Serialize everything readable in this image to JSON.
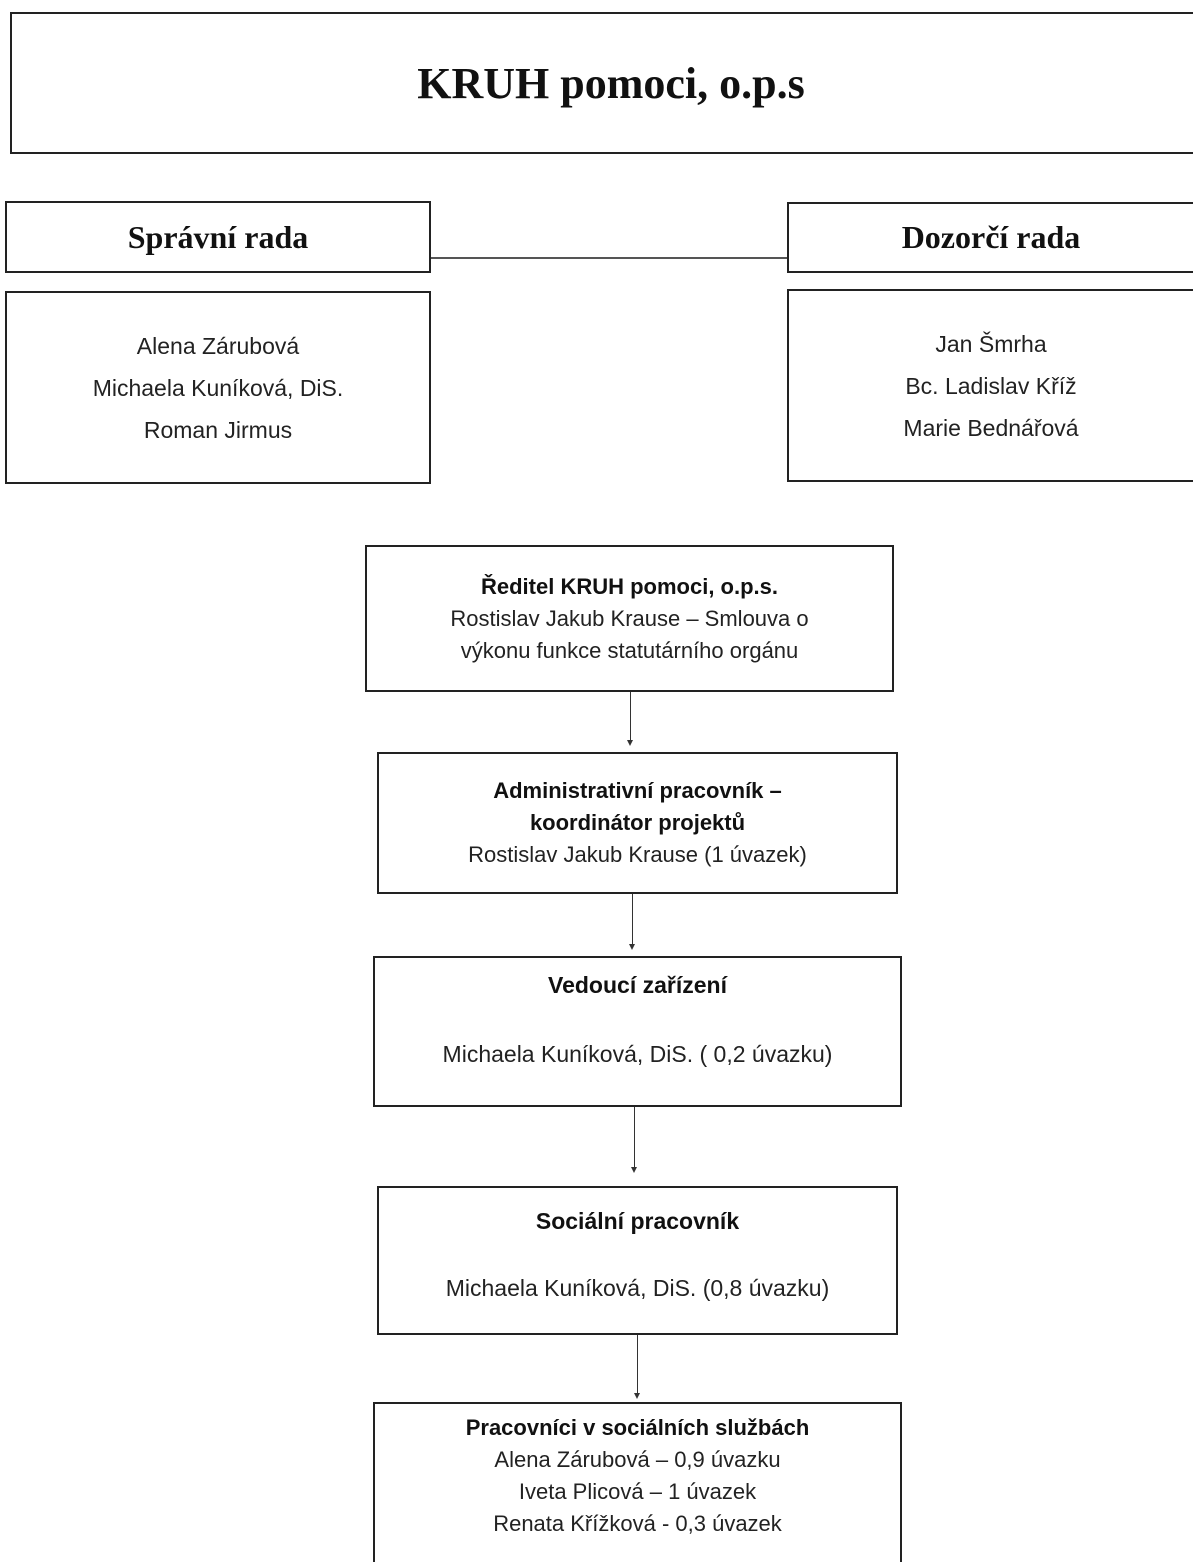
{
  "title": "KRUH pomoci, o.p.s",
  "board_left": {
    "heading": "Správní rada",
    "members": [
      "Alena Zárubová",
      "Michaela Kuníková, DiS.",
      "Roman Jirmus"
    ]
  },
  "board_right": {
    "heading": "Dozorčí rada",
    "members": [
      "Jan Šmrha",
      "Bc. Ladislav Kříž",
      "Marie Bednářová"
    ]
  },
  "director": {
    "title": "Ředitel KRUH pomoci, o.p.s.",
    "line1": "Rostislav Jakub Krause – Smlouva o",
    "line2": "výkonu funkce statutárního orgánu"
  },
  "admin": {
    "title1": "Administrativní pracovník –",
    "title2": "koordinátor projektů",
    "person": "Rostislav Jakub Krause (1 úvazek)"
  },
  "manager": {
    "title": "Vedoucí zařízení",
    "person": "Michaela Kuníková, DiS. ( 0,2 úvazku)"
  },
  "social_worker": {
    "title": "Sociální pracovník",
    "person": "Michaela Kuníková, DiS. (0,8 úvazku)"
  },
  "care_workers": {
    "title": "Pracovníci v sociálních službách",
    "people": [
      "Alena Zárubová – 0,9 úvazku",
      "Iveta Plicová – 1 úvazek",
      "Renata Křížková - 0,3 úvazek"
    ]
  }
}
